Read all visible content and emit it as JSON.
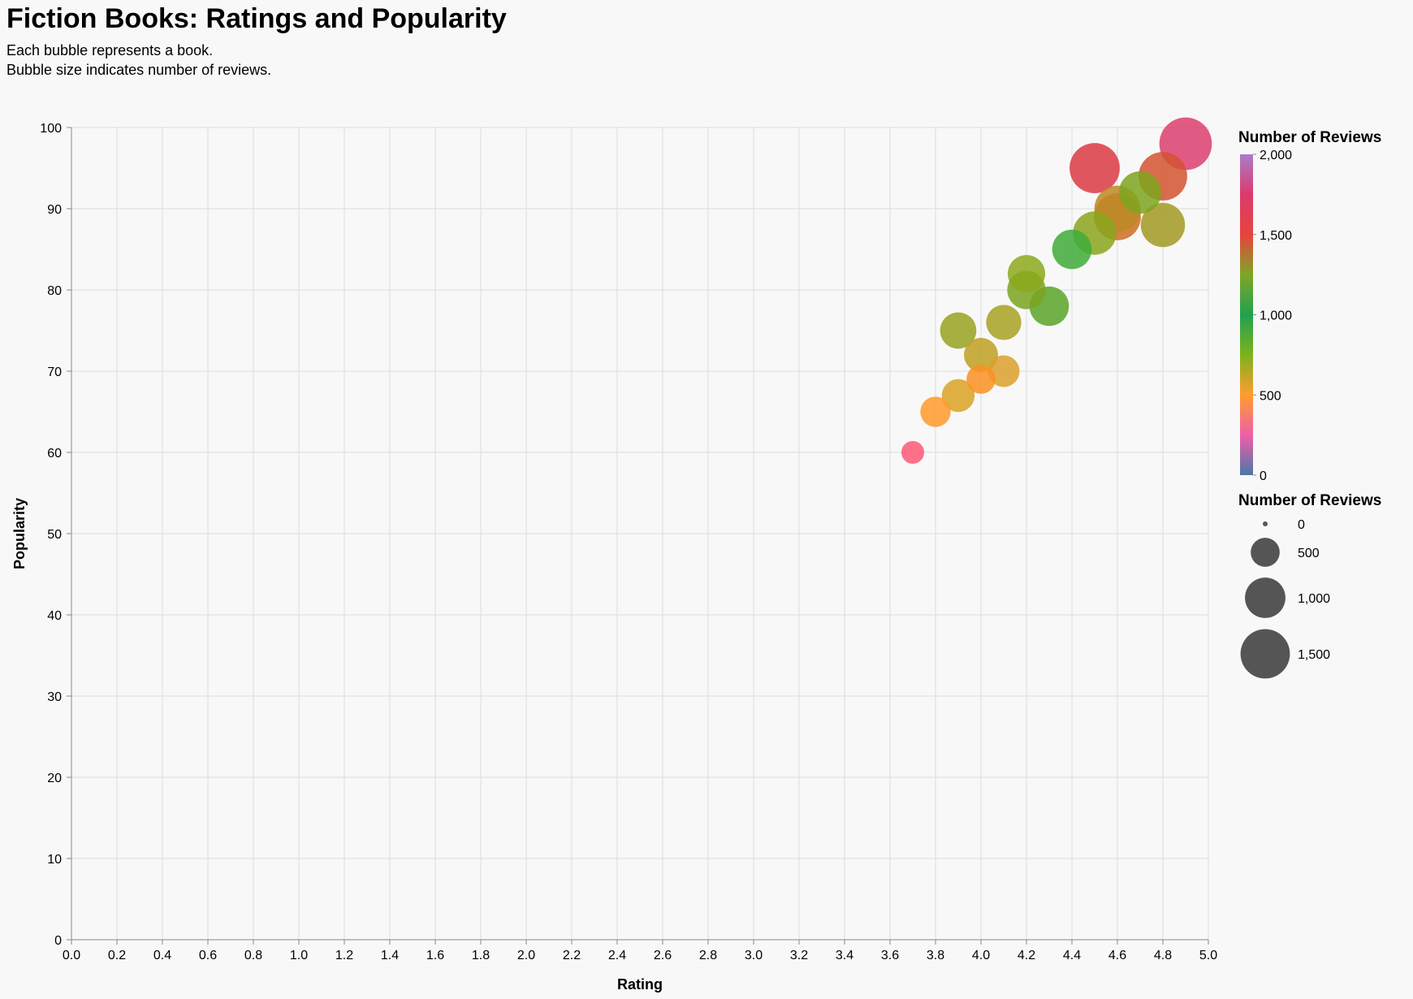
{
  "title": "Fiction Books: Ratings and Popularity",
  "subtitle_lines": [
    "Each bubble represents a book.",
    "Bubble size indicates number of reviews."
  ],
  "chart_data": {
    "type": "scatter",
    "title": "Fiction Books: Ratings and Popularity",
    "xlabel": "Rating",
    "ylabel": "Popularity",
    "xlim": [
      0,
      5
    ],
    "ylim": [
      0,
      100
    ],
    "x_ticks": [
      "0.0",
      "0.2",
      "0.4",
      "0.6",
      "0.8",
      "1.0",
      "1.2",
      "1.4",
      "1.6",
      "1.8",
      "2.0",
      "2.2",
      "2.4",
      "2.6",
      "2.8",
      "3.0",
      "3.2",
      "3.4",
      "3.6",
      "3.8",
      "4.0",
      "4.2",
      "4.4",
      "4.6",
      "4.8",
      "5.0"
    ],
    "y_ticks": [
      "0",
      "10",
      "20",
      "30",
      "40",
      "50",
      "60",
      "70",
      "80",
      "90",
      "100"
    ],
    "grid": true,
    "size_field": "Number of Reviews",
    "color_field": "Number of Reviews",
    "points": [
      {
        "rating": 4.9,
        "popularity": 98,
        "reviews": 1700,
        "color": "#dc3f6e"
      },
      {
        "rating": 4.5,
        "popularity": 95,
        "reviews": 1550,
        "color": "#dc3a44"
      },
      {
        "rating": 4.8,
        "popularity": 94,
        "reviews": 1450,
        "color": "#d4542f"
      },
      {
        "rating": 4.7,
        "popularity": 92,
        "reviews": 1100,
        "color": "#7ea51f"
      },
      {
        "rating": 4.6,
        "popularity": 90,
        "reviews": 1300,
        "color": "#bd8a26"
      },
      {
        "rating": 4.6,
        "popularity": 89,
        "reviews": 1350,
        "color": "#cd6e22"
      },
      {
        "rating": 4.8,
        "popularity": 88,
        "reviews": 1200,
        "color": "#a29a22"
      },
      {
        "rating": 4.5,
        "popularity": 87,
        "reviews": 1150,
        "color": "#8aa61c"
      },
      {
        "rating": 4.4,
        "popularity": 85,
        "reviews": 950,
        "color": "#3fab3a"
      },
      {
        "rating": 4.2,
        "popularity": 82,
        "reviews": 850,
        "color": "#8ca91c"
      },
      {
        "rating": 4.2,
        "popularity": 80,
        "reviews": 900,
        "color": "#7aa51e"
      },
      {
        "rating": 4.3,
        "popularity": 78,
        "reviews": 950,
        "color": "#5aa528"
      },
      {
        "rating": 4.1,
        "popularity": 76,
        "reviews": 750,
        "color": "#a8a222"
      },
      {
        "rating": 3.9,
        "popularity": 75,
        "reviews": 800,
        "color": "#98a21e"
      },
      {
        "rating": 4.0,
        "popularity": 72,
        "reviews": 700,
        "color": "#bea022"
      },
      {
        "rating": 4.1,
        "popularity": 70,
        "reviews": 600,
        "color": "#daa02a"
      },
      {
        "rating": 4.0,
        "popularity": 69,
        "reviews": 500,
        "color": "#fc9022"
      },
      {
        "rating": 3.9,
        "popularity": 67,
        "reviews": 650,
        "color": "#dca224"
      },
      {
        "rating": 3.8,
        "popularity": 65,
        "reviews": 550,
        "color": "#ff9a2a"
      },
      {
        "rating": 3.7,
        "popularity": 60,
        "reviews": 300,
        "color": "#ff5874"
      }
    ],
    "color_legend": {
      "title": "Number of Reviews",
      "domain": [
        0,
        2000
      ],
      "labels": [
        "2,000",
        "1,500",
        "1,000",
        "500",
        "0"
      ],
      "stops": [
        "#4c78a8",
        "#f05fa8",
        "#ff9d2c",
        "#7db21d",
        "#21a24f",
        "#7fa626",
        "#e8433e",
        "#dc3a6c",
        "#a97ec8"
      ]
    },
    "size_legend": {
      "title": "Number of Reviews",
      "values": [
        0,
        500,
        1000,
        1500
      ],
      "labels": [
        "0",
        "500",
        "1,000",
        "1,500"
      ]
    }
  }
}
